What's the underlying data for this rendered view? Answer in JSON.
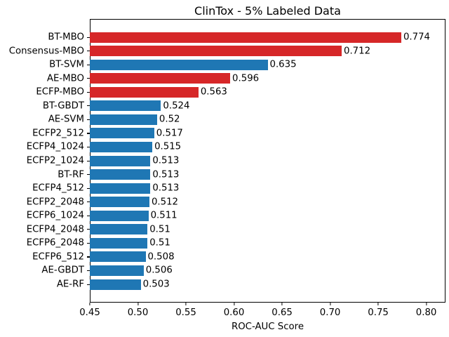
{
  "chart_data": {
    "type": "bar",
    "orientation": "horizontal",
    "title": "ClinTox - 5% Labeled Data",
    "xlabel": "ROC-AUC Score",
    "xlim": [
      0.45,
      0.82
    ],
    "xticks": [
      "0.45",
      "0.50",
      "0.55",
      "0.60",
      "0.65",
      "0.70",
      "0.75",
      "0.80"
    ],
    "grid": false,
    "legend_position": "none",
    "categories": [
      "BT-MBO",
      "Consensus-MBO",
      "BT-SVM",
      "AE-MBO",
      "ECFP-MBO",
      "BT-GBDT",
      "AE-SVM",
      "ECFP2_512",
      "ECFP4_1024",
      "ECFP2_1024",
      "BT-RF",
      "ECFP4_512",
      "ECFP2_2048",
      "ECFP6_1024",
      "ECFP4_2048",
      "ECFP6_2048",
      "ECFP6_512",
      "AE-GBDT",
      "AE-RF"
    ],
    "values": [
      0.774,
      0.712,
      0.635,
      0.596,
      0.563,
      0.524,
      0.52,
      0.517,
      0.515,
      0.513,
      0.513,
      0.513,
      0.512,
      0.511,
      0.51,
      0.51,
      0.508,
      0.506,
      0.503
    ],
    "value_labels": [
      "0.774",
      "0.712",
      "0.635",
      "0.596",
      "0.563",
      "0.524",
      "0.52",
      "0.517",
      "0.515",
      "0.513",
      "0.513",
      "0.513",
      "0.512",
      "0.511",
      "0.51",
      "0.51",
      "0.508",
      "0.506",
      "0.503"
    ],
    "bar_colors": [
      "#d62728",
      "#d62728",
      "#1f77b4",
      "#d62728",
      "#d62728",
      "#1f77b4",
      "#1f77b4",
      "#1f77b4",
      "#1f77b4",
      "#1f77b4",
      "#1f77b4",
      "#1f77b4",
      "#1f77b4",
      "#1f77b4",
      "#1f77b4",
      "#1f77b4",
      "#1f77b4",
      "#1f77b4",
      "#1f77b4"
    ],
    "colors": {
      "highlight_red": "#d62728",
      "baseline_blue": "#1f77b4",
      "axis": "#000000",
      "background": "#ffffff"
    }
  }
}
